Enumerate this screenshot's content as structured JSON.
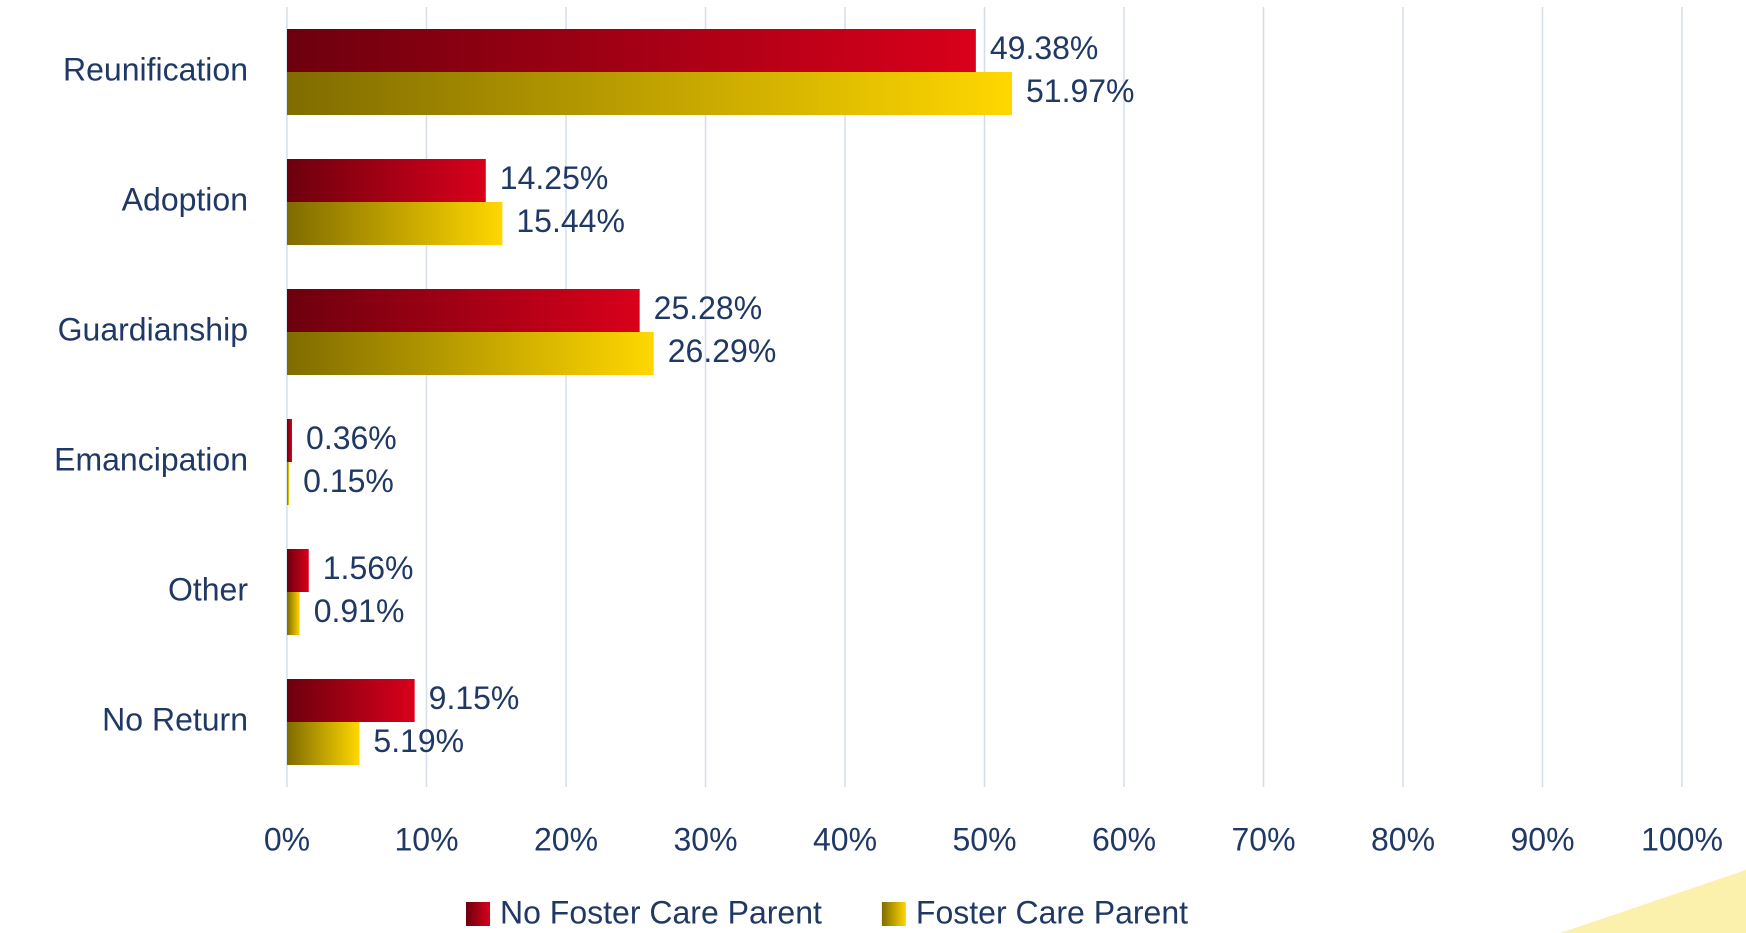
{
  "chart_data": {
    "type": "hbar",
    "categories": [
      "Reunification",
      "Adoption",
      "Guardianship",
      "Emancipation",
      "Other",
      "No Return"
    ],
    "series": [
      {
        "name": "No Foster Care Parent",
        "color": "#d9001b",
        "values": [
          49.38,
          14.25,
          25.28,
          0.36,
          1.56,
          9.15
        ],
        "value_labels": [
          "49.38%",
          "14.25%",
          "25.28%",
          "0.36%",
          "1.56%",
          "9.15%"
        ]
      },
      {
        "name": "Foster Care Parent",
        "color": "#ffd700",
        "values": [
          51.97,
          15.44,
          26.29,
          0.15,
          0.91,
          5.19
        ],
        "value_labels": [
          "51.97%",
          "15.44%",
          "26.29%",
          "0.15%",
          "0.91%",
          "5.19%"
        ]
      }
    ],
    "xlim": [
      0,
      100
    ],
    "xticks": [
      {
        "value": 0,
        "label": "0%"
      },
      {
        "value": 10,
        "label": "10%"
      },
      {
        "value": 20,
        "label": "20%"
      },
      {
        "value": 30,
        "label": "30%"
      },
      {
        "value": 40,
        "label": "40%"
      },
      {
        "value": 50,
        "label": "50%"
      },
      {
        "value": 60,
        "label": "60%"
      },
      {
        "value": 70,
        "label": "70%"
      },
      {
        "value": 80,
        "label": "80%"
      },
      {
        "value": 90,
        "label": "90%"
      },
      {
        "value": 100,
        "label": "100%"
      }
    ],
    "grid": true,
    "legend": "bottom"
  }
}
